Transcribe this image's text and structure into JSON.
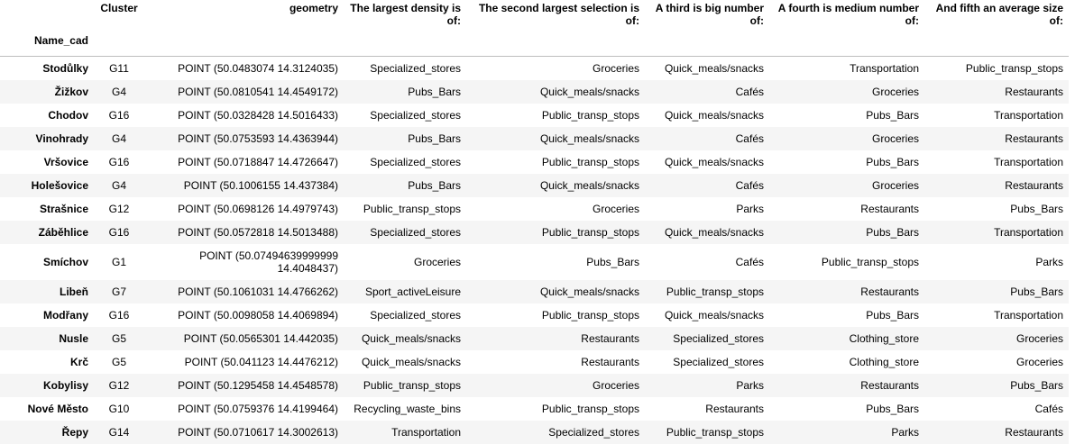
{
  "table": {
    "index_name": "Name_cad",
    "columns": [
      "Cluster",
      "geometry",
      "The largest density is of:",
      "The second largest selection is of:",
      "A third is big number of:",
      "A fourth is medium number of:",
      "And fifth an average size of:"
    ],
    "rows": [
      {
        "name": "Stodůlky",
        "cluster": "G11",
        "geometry": "POINT (50.0483074 14.3124035)",
        "c1": "Specialized_stores",
        "c2": "Groceries",
        "c3": "Quick_meals/snacks",
        "c4": "Transportation",
        "c5": "Public_transp_stops"
      },
      {
        "name": "Žižkov",
        "cluster": "G4",
        "geometry": "POINT (50.0810541 14.4549172)",
        "c1": "Pubs_Bars",
        "c2": "Quick_meals/snacks",
        "c3": "Cafés",
        "c4": "Groceries",
        "c5": "Restaurants"
      },
      {
        "name": "Chodov",
        "cluster": "G16",
        "geometry": "POINT (50.0328428 14.5016433)",
        "c1": "Specialized_stores",
        "c2": "Public_transp_stops",
        "c3": "Quick_meals/snacks",
        "c4": "Pubs_Bars",
        "c5": "Transportation"
      },
      {
        "name": "Vinohrady",
        "cluster": "G4",
        "geometry": "POINT (50.0753593 14.4363944)",
        "c1": "Pubs_Bars",
        "c2": "Quick_meals/snacks",
        "c3": "Cafés",
        "c4": "Groceries",
        "c5": "Restaurants"
      },
      {
        "name": "Vršovice",
        "cluster": "G16",
        "geometry": "POINT (50.0718847 14.4726647)",
        "c1": "Specialized_stores",
        "c2": "Public_transp_stops",
        "c3": "Quick_meals/snacks",
        "c4": "Pubs_Bars",
        "c5": "Transportation"
      },
      {
        "name": "Holešovice",
        "cluster": "G4",
        "geometry": "POINT (50.1006155 14.437384)",
        "c1": "Pubs_Bars",
        "c2": "Quick_meals/snacks",
        "c3": "Cafés",
        "c4": "Groceries",
        "c5": "Restaurants"
      },
      {
        "name": "Strašnice",
        "cluster": "G12",
        "geometry": "POINT (50.0698126 14.4979743)",
        "c1": "Public_transp_stops",
        "c2": "Groceries",
        "c3": "Parks",
        "c4": "Restaurants",
        "c5": "Pubs_Bars"
      },
      {
        "name": "Záběhlice",
        "cluster": "G16",
        "geometry": "POINT (50.0572818 14.5013488)",
        "c1": "Specialized_stores",
        "c2": "Public_transp_stops",
        "c3": "Quick_meals/snacks",
        "c4": "Pubs_Bars",
        "c5": "Transportation"
      },
      {
        "name": "Smíchov",
        "cluster": "G1",
        "geometry": "POINT (50.07494639999999 14.4048437)",
        "c1": "Groceries",
        "c2": "Pubs_Bars",
        "c3": "Cafés",
        "c4": "Public_transp_stops",
        "c5": "Parks"
      },
      {
        "name": "Libeň",
        "cluster": "G7",
        "geometry": "POINT (50.1061031 14.4766262)",
        "c1": "Sport_activeLeisure",
        "c2": "Quick_meals/snacks",
        "c3": "Public_transp_stops",
        "c4": "Restaurants",
        "c5": "Pubs_Bars"
      },
      {
        "name": "Modřany",
        "cluster": "G16",
        "geometry": "POINT (50.0098058 14.4069894)",
        "c1": "Specialized_stores",
        "c2": "Public_transp_stops",
        "c3": "Quick_meals/snacks",
        "c4": "Pubs_Bars",
        "c5": "Transportation"
      },
      {
        "name": "Nusle",
        "cluster": "G5",
        "geometry": "POINT (50.0565301 14.442035)",
        "c1": "Quick_meals/snacks",
        "c2": "Restaurants",
        "c3": "Specialized_stores",
        "c4": "Clothing_store",
        "c5": "Groceries"
      },
      {
        "name": "Krč",
        "cluster": "G5",
        "geometry": "POINT (50.041123 14.4476212)",
        "c1": "Quick_meals/snacks",
        "c2": "Restaurants",
        "c3": "Specialized_stores",
        "c4": "Clothing_store",
        "c5": "Groceries"
      },
      {
        "name": "Kobylisy",
        "cluster": "G12",
        "geometry": "POINT (50.1295458 14.4548578)",
        "c1": "Public_transp_stops",
        "c2": "Groceries",
        "c3": "Parks",
        "c4": "Restaurants",
        "c5": "Pubs_Bars"
      },
      {
        "name": "Nové Město",
        "cluster": "G10",
        "geometry": "POINT (50.0759376 14.4199464)",
        "c1": "Recycling_waste_bins",
        "c2": "Public_transp_stops",
        "c3": "Restaurants",
        "c4": "Pubs_Bars",
        "c5": "Cafés"
      },
      {
        "name": "Řepy",
        "cluster": "G14",
        "geometry": "POINT (50.0710617 14.3002613)",
        "c1": "Transportation",
        "c2": "Specialized_stores",
        "c3": "Public_transp_stops",
        "c4": "Parks",
        "c5": "Restaurants"
      }
    ]
  }
}
